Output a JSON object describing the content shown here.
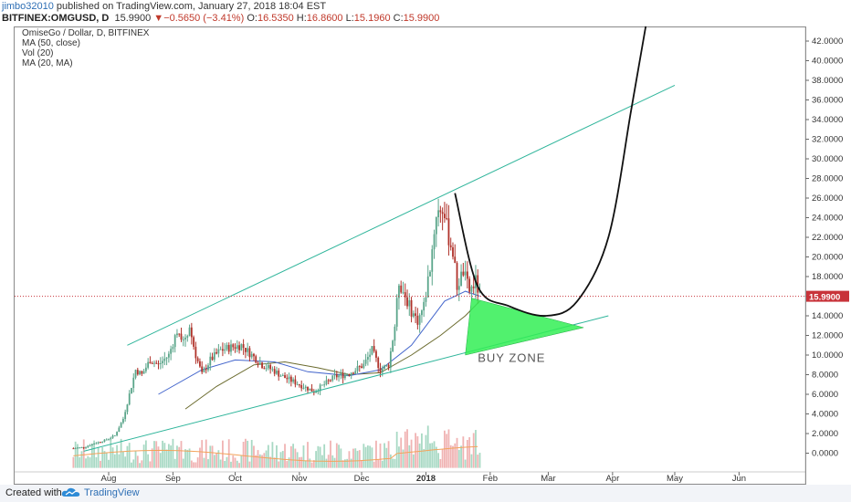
{
  "header": {
    "user": "jimbo32010",
    "published": " published on TradingView.com, January 27, 2018 18:04 EST",
    "symbol": "BITFINEX:OMGUSD, D",
    "last": "15.9900",
    "change_arrow": "▼",
    "change": "−0.5650 (−3.41%)",
    "o_label": "O:",
    "o": "16.5350",
    "h_label": "H:",
    "h": "16.8600",
    "l_label": "L:",
    "l": "15.1960",
    "c_label": "C:",
    "c": "15.9900"
  },
  "legend": [
    "OmiseGo / Dollar, D, BITFINEX",
    "MA (50, close)",
    "Vol (20)",
    "MA (20, MA)"
  ],
  "footer": {
    "created": "Created with",
    "brand": "TradingView",
    "logo_icon": "tradingview-cloud-icon"
  },
  "colors": {
    "up": "#5aa58a",
    "down": "#b0322a",
    "trendline": "#2fb59b",
    "ma50": "#6b6b2e",
    "ma20": "#4466cc",
    "zone": "#33ee55",
    "price_line": "#c8333a",
    "vol_ma": "#f3a35b"
  },
  "chart_data": {
    "type": "candlestick",
    "price_tag": "15.9900",
    "last_price": 15.99,
    "ylim": [
      -2,
      43
    ],
    "y_ticks": [
      "42.0000",
      "40.0000",
      "38.0000",
      "36.0000",
      "34.0000",
      "32.0000",
      "30.0000",
      "28.0000",
      "26.0000",
      "24.0000",
      "22.0000",
      "20.0000",
      "18.0000",
      "16.0000",
      "14.0000",
      "12.0000",
      "10.0000",
      "8.0000",
      "6.0000",
      "4.0000",
      "2.0000",
      "0.0000"
    ],
    "y_tick_values": [
      42,
      40,
      38,
      36,
      34,
      32,
      30,
      28,
      26,
      24,
      22,
      20,
      18,
      16,
      14,
      12,
      10,
      8,
      6,
      4,
      2,
      0
    ],
    "x_ticks": [
      "Aug",
      "Sep",
      "Oct",
      "Nov",
      "Dec",
      "2018",
      "Feb",
      "Mar",
      "Apr",
      "May",
      "Jun"
    ],
    "x_tick_dates": [
      "2017-08-01",
      "2017-09-01",
      "2017-10-01",
      "2017-11-01",
      "2017-12-01",
      "2018-01-01",
      "2018-02-01",
      "2018-03-01",
      "2018-04-01",
      "2018-05-01",
      "2018-06-01"
    ],
    "price_path": [
      [
        "2017-07-15",
        0.5
      ],
      [
        "2017-07-20",
        0.6
      ],
      [
        "2017-07-25",
        1.0
      ],
      [
        "2017-07-30",
        1.3
      ],
      [
        "2017-08-04",
        1.8
      ],
      [
        "2017-08-08",
        3.5
      ],
      [
        "2017-08-11",
        6.0
      ],
      [
        "2017-08-14",
        8.5
      ],
      [
        "2017-08-17",
        8.0
      ],
      [
        "2017-08-21",
        9.5
      ],
      [
        "2017-08-25",
        9.0
      ],
      [
        "2017-08-30",
        10.0
      ],
      [
        "2017-09-03",
        12.5
      ],
      [
        "2017-09-06",
        11.5
      ],
      [
        "2017-09-09",
        12.8
      ],
      [
        "2017-09-12",
        10.0
      ],
      [
        "2017-09-15",
        8.0
      ],
      [
        "2017-09-19",
        9.5
      ],
      [
        "2017-09-24",
        10.5
      ],
      [
        "2017-09-29",
        10.8
      ],
      [
        "2017-10-04",
        11.0
      ],
      [
        "2017-10-09",
        10.0
      ],
      [
        "2017-10-14",
        9.0
      ],
      [
        "2017-10-19",
        8.5
      ],
      [
        "2017-10-24",
        7.8
      ],
      [
        "2017-10-29",
        7.3
      ],
      [
        "2017-11-03",
        6.8
      ],
      [
        "2017-11-08",
        6.3
      ],
      [
        "2017-11-13",
        7.0
      ],
      [
        "2017-11-18",
        7.8
      ],
      [
        "2017-11-23",
        8.0
      ],
      [
        "2017-11-28",
        8.5
      ],
      [
        "2017-12-02",
        9.0
      ],
      [
        "2017-12-06",
        10.5
      ],
      [
        "2017-12-10",
        8.5
      ],
      [
        "2017-12-14",
        9.0
      ],
      [
        "2017-12-17",
        13.0
      ],
      [
        "2017-12-19",
        17.5
      ],
      [
        "2017-12-22",
        16.0
      ],
      [
        "2017-12-25",
        14.5
      ],
      [
        "2017-12-28",
        13.5
      ],
      [
        "2017-12-31",
        15.0
      ],
      [
        "2018-01-03",
        19.0
      ],
      [
        "2018-01-06",
        24.5
      ],
      [
        "2018-01-09",
        25.0
      ],
      [
        "2018-01-12",
        22.0
      ],
      [
        "2018-01-14",
        20.5
      ],
      [
        "2018-01-16",
        17.0
      ],
      [
        "2018-01-19",
        18.5
      ],
      [
        "2018-01-22",
        16.5
      ],
      [
        "2018-01-25",
        17.5
      ],
      [
        "2018-01-27",
        15.99
      ]
    ],
    "ma50": [
      [
        "2017-09-07",
        4.5
      ],
      [
        "2017-09-22",
        6.8
      ],
      [
        "2017-10-10",
        9.0
      ],
      [
        "2017-10-25",
        9.3
      ],
      [
        "2017-11-10",
        8.7
      ],
      [
        "2017-11-25",
        8.0
      ],
      [
        "2017-12-10",
        8.2
      ],
      [
        "2017-12-25",
        10.0
      ],
      [
        "2018-01-08",
        12.0
      ],
      [
        "2018-01-20",
        14.0
      ],
      [
        "2018-01-27",
        15.5
      ]
    ],
    "ma20": [
      [
        "2017-08-25",
        6.0
      ],
      [
        "2017-09-15",
        8.5
      ],
      [
        "2017-10-01",
        9.5
      ],
      [
        "2017-10-20",
        9.3
      ],
      [
        "2017-11-05",
        8.3
      ],
      [
        "2017-11-25",
        7.9
      ],
      [
        "2017-12-10",
        8.5
      ],
      [
        "2017-12-25",
        11.0
      ],
      [
        "2018-01-10",
        15.5
      ],
      [
        "2018-01-20",
        16.5
      ],
      [
        "2018-01-27",
        16.0
      ]
    ],
    "volume_max_price_units": 4.5,
    "annotations": {
      "upper_trendline": [
        [
          "2017-08-10",
          11.0
        ],
        [
          "2018-05-01",
          37.5
        ]
      ],
      "lower_trendline": [
        [
          "2017-07-20",
          0.2
        ],
        [
          "2018-03-30",
          14.0
        ]
      ],
      "buy_zone": {
        "label": "BUY ZONE",
        "points": [
          [
            "2018-01-23",
            15.8
          ],
          [
            "2018-03-18",
            12.8
          ],
          [
            "2018-01-20",
            10.0
          ]
        ]
      },
      "projection": [
        [
          "2018-01-15",
          26.5
        ],
        [
          "2018-01-26",
          17.0
        ],
        [
          "2018-02-10",
          15.0
        ],
        [
          "2018-02-28",
          14.0
        ],
        [
          "2018-03-15",
          15.5
        ],
        [
          "2018-03-30",
          22.0
        ],
        [
          "2018-04-10",
          35.0
        ],
        [
          "2018-04-17",
          43.5
        ]
      ]
    }
  }
}
